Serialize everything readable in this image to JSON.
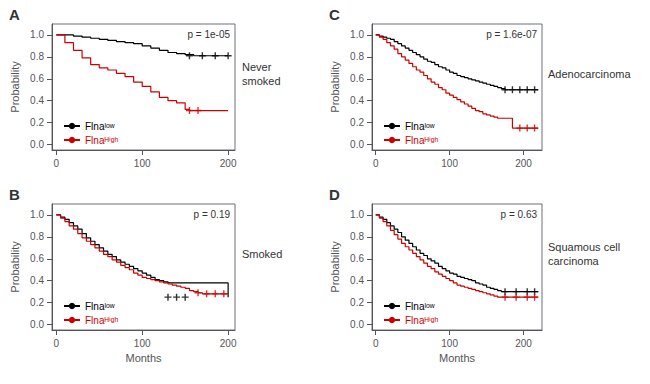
{
  "chart_data": [
    {
      "type": "step",
      "title": "A",
      "annotation": "p = 1e-05",
      "side_label": "Never\nsmoked",
      "ylabel": "Probability",
      "xlim": [
        -5,
        208
      ],
      "xticks": [
        0,
        100,
        200
      ],
      "ylim": [
        -0.05,
        1.1
      ],
      "yticks": [
        {
          "value": 0.0,
          "label": "0.0"
        },
        {
          "value": 0.2,
          "label": "0.2"
        },
        {
          "value": 0.4,
          "label": "0.4"
        },
        {
          "value": 0.6,
          "label": "0.6"
        },
        {
          "value": 0.8,
          "label": "0.8"
        },
        {
          "value": 1.0,
          "label": "1.0"
        }
      ],
      "grid": false,
      "legend": "lower left",
      "series": [
        {
          "name": "Flnaˡᵒʷ",
          "color": "#000000",
          "marker": "+",
          "x": [
            0,
            10,
            20,
            30,
            40,
            50,
            60,
            70,
            80,
            90,
            100,
            110,
            120,
            130,
            140,
            150,
            160,
            170,
            180,
            200
          ],
          "values": [
            1.0,
            1.0,
            0.99,
            0.98,
            0.97,
            0.96,
            0.95,
            0.94,
            0.93,
            0.92,
            0.9,
            0.88,
            0.86,
            0.84,
            0.83,
            0.82,
            0.81,
            0.81,
            0.81,
            0.81
          ],
          "censored_x": [
            155,
            170,
            185,
            200
          ],
          "censored_values": [
            0.81,
            0.81,
            0.81,
            0.81
          ]
        },
        {
          "name": "Flnaᴴⁱᵍʰ",
          "color": "#cc0000",
          "marker": "+",
          "x": [
            0,
            10,
            20,
            30,
            40,
            50,
            60,
            70,
            80,
            90,
            100,
            110,
            120,
            130,
            140,
            150,
            155,
            160,
            165,
            200
          ],
          "values": [
            1.0,
            0.93,
            0.86,
            0.79,
            0.73,
            0.7,
            0.68,
            0.65,
            0.62,
            0.57,
            0.53,
            0.48,
            0.43,
            0.4,
            0.38,
            0.32,
            0.31,
            0.31,
            0.31,
            0.31
          ],
          "censored_x": [
            155,
            165
          ],
          "censored_values": [
            0.31,
            0.31
          ]
        }
      ]
    },
    {
      "type": "step",
      "title": "B",
      "annotation": "p = 0.19",
      "side_label": "Smoked",
      "xlabel": "Months",
      "ylabel": "Probability",
      "xlim": [
        -5,
        208
      ],
      "xticks": [
        0,
        100,
        200
      ],
      "ylim": [
        -0.05,
        1.1
      ],
      "yticks": [
        {
          "value": 0.0,
          "label": "0.0"
        },
        {
          "value": 0.2,
          "label": "0.2"
        },
        {
          "value": 0.4,
          "label": "0.4"
        },
        {
          "value": 0.6,
          "label": "0.6"
        },
        {
          "value": 0.8,
          "label": "0.8"
        },
        {
          "value": 1.0,
          "label": "1.0"
        }
      ],
      "grid": false,
      "legend": "lower left",
      "series": [
        {
          "name": "Flnaˡᵒʷ",
          "color": "#000000",
          "marker": "+",
          "x": [
            0,
            5,
            10,
            15,
            20,
            25,
            30,
            35,
            40,
            45,
            50,
            55,
            60,
            65,
            70,
            75,
            80,
            85,
            90,
            95,
            100,
            105,
            110,
            115,
            120,
            125,
            130,
            200
          ],
          "values": [
            1.0,
            0.98,
            0.96,
            0.93,
            0.9,
            0.87,
            0.83,
            0.79,
            0.76,
            0.73,
            0.7,
            0.67,
            0.64,
            0.62,
            0.59,
            0.57,
            0.55,
            0.53,
            0.51,
            0.49,
            0.47,
            0.45,
            0.43,
            0.41,
            0.4,
            0.39,
            0.38,
            0.25
          ],
          "censored_x": [
            130,
            140,
            150
          ],
          "censored_values": [
            0.25,
            0.25,
            0.25
          ]
        },
        {
          "name": "Flnaᴴⁱᵍʰ",
          "color": "#cc0000",
          "marker": "+",
          "x": [
            0,
            5,
            10,
            15,
            20,
            25,
            30,
            35,
            40,
            45,
            50,
            55,
            60,
            65,
            70,
            75,
            80,
            85,
            90,
            95,
            100,
            105,
            110,
            115,
            120,
            125,
            130,
            135,
            140,
            145,
            150,
            155,
            160,
            165,
            170,
            175,
            180,
            185,
            190,
            195,
            200
          ],
          "values": [
            1.0,
            0.97,
            0.94,
            0.9,
            0.87,
            0.83,
            0.79,
            0.76,
            0.73,
            0.7,
            0.67,
            0.64,
            0.62,
            0.59,
            0.57,
            0.54,
            0.52,
            0.5,
            0.47,
            0.45,
            0.43,
            0.42,
            0.41,
            0.4,
            0.39,
            0.38,
            0.37,
            0.36,
            0.35,
            0.34,
            0.33,
            0.31,
            0.3,
            0.29,
            0.28,
            0.28,
            0.28,
            0.28,
            0.28,
            0.28,
            0.28
          ],
          "censored_x": [
            165,
            175,
            185,
            195
          ],
          "censored_values": [
            0.29,
            0.28,
            0.28,
            0.28
          ]
        }
      ]
    },
    {
      "type": "step",
      "title": "C",
      "annotation": "p = 1.6e-07",
      "side_label": "Adenocarcinoma",
      "ylabel": "Probability",
      "xlim": [
        -5,
        225
      ],
      "xticks": [
        0,
        100,
        200
      ],
      "ylim": [
        -0.05,
        1.1
      ],
      "yticks": [
        {
          "value": 0.0,
          "label": "0.0"
        },
        {
          "value": 0.2,
          "label": "0.2"
        },
        {
          "value": 0.4,
          "label": "0.4"
        },
        {
          "value": 0.6,
          "label": "0.6"
        },
        {
          "value": 0.8,
          "label": "0.8"
        },
        {
          "value": 1.0,
          "label": "1.0"
        }
      ],
      "grid": false,
      "legend": "lower left",
      "series": [
        {
          "name": "Flnaˡᵒʷ",
          "color": "#000000",
          "marker": "+",
          "x": [
            0,
            5,
            10,
            15,
            20,
            25,
            30,
            35,
            40,
            45,
            50,
            55,
            60,
            65,
            70,
            75,
            80,
            85,
            90,
            95,
            100,
            105,
            110,
            115,
            120,
            125,
            130,
            135,
            140,
            145,
            150,
            155,
            160,
            165,
            170,
            175,
            180,
            185,
            190,
            195,
            200,
            210,
            220
          ],
          "values": [
            1.0,
            0.99,
            0.98,
            0.97,
            0.96,
            0.94,
            0.92,
            0.9,
            0.88,
            0.86,
            0.84,
            0.82,
            0.8,
            0.78,
            0.76,
            0.75,
            0.73,
            0.71,
            0.7,
            0.68,
            0.66,
            0.65,
            0.63,
            0.62,
            0.61,
            0.6,
            0.59,
            0.58,
            0.57,
            0.56,
            0.55,
            0.54,
            0.53,
            0.52,
            0.51,
            0.5,
            0.5,
            0.5,
            0.5,
            0.5,
            0.5,
            0.5,
            0.5
          ],
          "censored_x": [
            175,
            185,
            195,
            205,
            215
          ],
          "censored_values": [
            0.5,
            0.5,
            0.5,
            0.5,
            0.5
          ]
        },
        {
          "name": "Flnaᴴⁱᵍʰ",
          "color": "#cc0000",
          "marker": "+",
          "x": [
            0,
            5,
            10,
            15,
            20,
            25,
            30,
            35,
            40,
            45,
            50,
            55,
            60,
            65,
            70,
            75,
            80,
            85,
            90,
            95,
            100,
            105,
            110,
            115,
            120,
            125,
            130,
            135,
            140,
            145,
            150,
            155,
            160,
            165,
            170,
            175,
            180,
            185,
            190,
            200,
            210,
            220
          ],
          "values": [
            1.0,
            0.98,
            0.96,
            0.93,
            0.9,
            0.87,
            0.83,
            0.8,
            0.77,
            0.74,
            0.71,
            0.68,
            0.66,
            0.63,
            0.6,
            0.57,
            0.55,
            0.52,
            0.5,
            0.47,
            0.45,
            0.43,
            0.41,
            0.39,
            0.37,
            0.35,
            0.33,
            0.31,
            0.3,
            0.28,
            0.27,
            0.26,
            0.25,
            0.24,
            0.24,
            0.24,
            0.24,
            0.15,
            0.15,
            0.15,
            0.15,
            0.15
          ],
          "censored_x": [
            195,
            205,
            215
          ],
          "censored_values": [
            0.15,
            0.15,
            0.15
          ]
        }
      ]
    },
    {
      "type": "step",
      "title": "D",
      "annotation": "p = 0.63",
      "side_label": "Squamous cell\ncarcinoma",
      "xlabel": "Months",
      "ylabel": "Probability",
      "xlim": [
        -5,
        225
      ],
      "xticks": [
        0,
        100,
        200
      ],
      "ylim": [
        -0.05,
        1.1
      ],
      "yticks": [
        {
          "value": 0.0,
          "label": "0.0"
        },
        {
          "value": 0.2,
          "label": "0.2"
        },
        {
          "value": 0.4,
          "label": "0.4"
        },
        {
          "value": 0.6,
          "label": "0.6"
        },
        {
          "value": 0.8,
          "label": "0.8"
        },
        {
          "value": 1.0,
          "label": "1.0"
        }
      ],
      "grid": false,
      "legend": "lower left",
      "series": [
        {
          "name": "Flnaˡᵒʷ",
          "color": "#000000",
          "marker": "+",
          "x": [
            0,
            5,
            10,
            15,
            20,
            25,
            30,
            35,
            40,
            45,
            50,
            55,
            60,
            65,
            70,
            75,
            80,
            85,
            90,
            95,
            100,
            105,
            110,
            115,
            120,
            125,
            130,
            135,
            140,
            145,
            150,
            155,
            160,
            165,
            170,
            175,
            180,
            185,
            190,
            195,
            200,
            210,
            220
          ],
          "values": [
            1.0,
            0.98,
            0.96,
            0.93,
            0.9,
            0.87,
            0.84,
            0.8,
            0.77,
            0.74,
            0.71,
            0.68,
            0.65,
            0.63,
            0.6,
            0.58,
            0.56,
            0.53,
            0.51,
            0.49,
            0.47,
            0.46,
            0.44,
            0.43,
            0.42,
            0.41,
            0.4,
            0.38,
            0.37,
            0.36,
            0.34,
            0.33,
            0.32,
            0.31,
            0.3,
            0.3,
            0.3,
            0.3,
            0.3,
            0.3,
            0.3,
            0.3,
            0.3
          ],
          "censored_x": [
            175,
            190,
            205,
            215
          ],
          "censored_values": [
            0.3,
            0.3,
            0.3,
            0.3
          ]
        },
        {
          "name": "Flnaᴴⁱᵍʰ",
          "color": "#cc0000",
          "marker": "+",
          "x": [
            0,
            5,
            10,
            15,
            20,
            25,
            30,
            35,
            40,
            45,
            50,
            55,
            60,
            65,
            70,
            75,
            80,
            85,
            90,
            95,
            100,
            105,
            110,
            115,
            120,
            125,
            130,
            135,
            140,
            145,
            150,
            155,
            160,
            165,
            170,
            175,
            180,
            185,
            190,
            195,
            200,
            210,
            220
          ],
          "values": [
            1.0,
            0.97,
            0.94,
            0.9,
            0.86,
            0.82,
            0.78,
            0.74,
            0.71,
            0.68,
            0.65,
            0.62,
            0.59,
            0.56,
            0.53,
            0.51,
            0.48,
            0.46,
            0.44,
            0.42,
            0.4,
            0.38,
            0.36,
            0.35,
            0.34,
            0.33,
            0.32,
            0.31,
            0.3,
            0.29,
            0.28,
            0.27,
            0.26,
            0.25,
            0.25,
            0.25,
            0.25,
            0.25,
            0.25,
            0.25,
            0.25,
            0.25,
            0.25
          ],
          "censored_x": [
            175,
            190,
            205,
            215
          ],
          "censored_values": [
            0.25,
            0.25,
            0.25,
            0.25
          ]
        }
      ]
    }
  ]
}
